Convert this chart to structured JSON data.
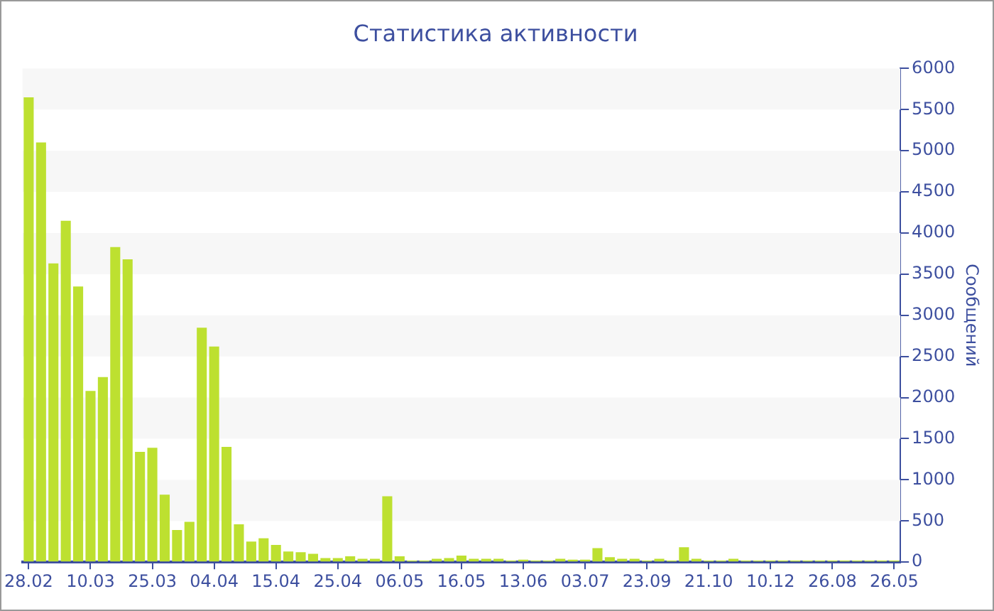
{
  "chart_data": {
    "type": "bar",
    "title": "Статистика активности",
    "ylabel": "Сообщений",
    "categories": [
      "28.02",
      null,
      null,
      null,
      null,
      "10.03",
      null,
      null,
      null,
      null,
      "25.03",
      null,
      null,
      null,
      null,
      "04.04",
      null,
      null,
      null,
      null,
      "15.04",
      null,
      null,
      null,
      null,
      "25.04",
      null,
      null,
      null,
      null,
      "06.05",
      null,
      null,
      null,
      null,
      "16.05",
      null,
      null,
      null,
      null,
      "13.06",
      null,
      null,
      null,
      null,
      "03.07",
      null,
      null,
      null,
      null,
      "23.09",
      null,
      null,
      null,
      null,
      "21.10",
      null,
      null,
      null,
      null,
      "10.12",
      null,
      null,
      null,
      null,
      "26.08",
      null,
      null,
      null,
      null,
      "26.05"
    ],
    "values": [
      5650,
      5100,
      3630,
      4150,
      3350,
      2080,
      2250,
      3830,
      3680,
      1340,
      1390,
      820,
      390,
      490,
      2850,
      2620,
      1400,
      460,
      250,
      290,
      210,
      130,
      120,
      100,
      50,
      50,
      70,
      40,
      40,
      800,
      70,
      20,
      20,
      40,
      50,
      80,
      40,
      40,
      40,
      20,
      30,
      20,
      20,
      40,
      30,
      30,
      170,
      60,
      40,
      40,
      20,
      40,
      20,
      180,
      40,
      20,
      20,
      40,
      20,
      20,
      20,
      20,
      20,
      20,
      20,
      20,
      20,
      20,
      20,
      20,
      20
    ],
    "color": "#bde030",
    "ylim": [
      0,
      6000
    ],
    "yticks": [
      0,
      500,
      1000,
      1500,
      2000,
      2500,
      3000,
      3500,
      4000,
      4500,
      5000,
      5500,
      6000
    ]
  }
}
